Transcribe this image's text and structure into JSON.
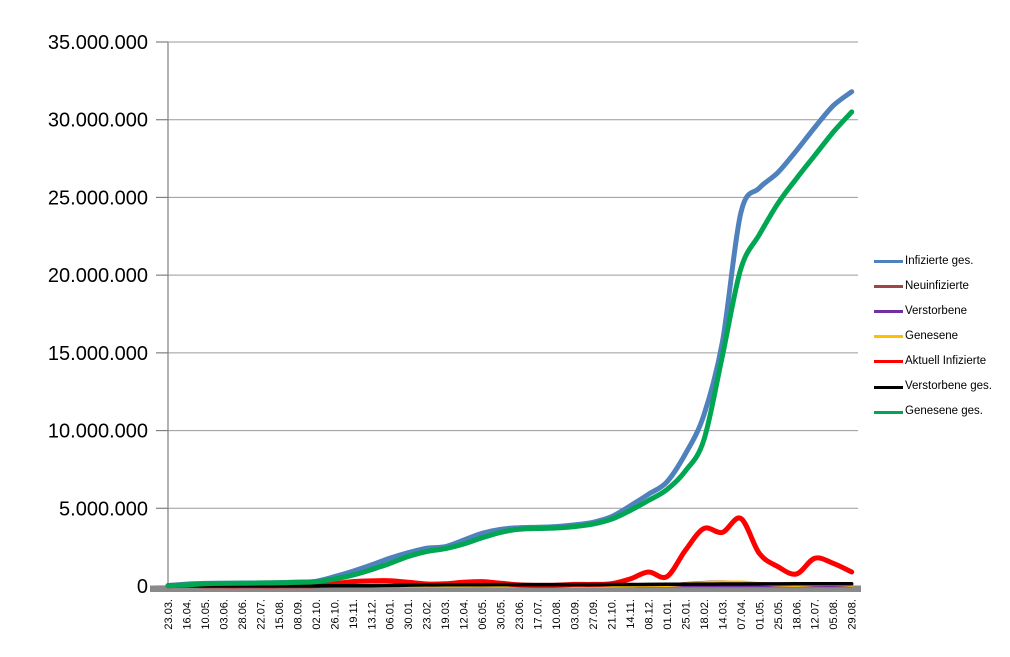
{
  "chart_data": {
    "type": "line",
    "title": "",
    "xlabel": "",
    "ylabel": "",
    "grid": true,
    "legend_position": "right",
    "background": "#ffffff",
    "gridline_color": "#9a9a9a",
    "axis_line_color": "#808080",
    "x_axis_bar_color": "#8a8a8a",
    "tick_label_color": "#000000",
    "y_axis": {
      "min": 0,
      "max": 35000000,
      "step": 5000000,
      "tick_labels": [
        "0",
        "5.000.000",
        "10.000.000",
        "15.000.000",
        "20.000.000",
        "25.000.000",
        "30.000.000",
        "35.000.000"
      ]
    },
    "categories": [
      "23.03.",
      "16.04.",
      "10.05.",
      "03.06.",
      "28.06.",
      "22.07.",
      "15.08.",
      "08.09.",
      "02.10.",
      "26.10.",
      "19.11.",
      "13.12.",
      "06.01.",
      "30.01.",
      "23.02.",
      "19.03.",
      "12.04.",
      "06.05.",
      "30.05.",
      "23.06.",
      "17.07.",
      "10.08.",
      "03.09.",
      "27.09.",
      "21.10.",
      "14.11.",
      "08.12.",
      "01.01.",
      "25.01.",
      "18.02.",
      "14.03.",
      "07.04.",
      "01.05.",
      "25.05.",
      "18.06.",
      "12.07.",
      "05.08.",
      "29.08."
    ],
    "series": [
      {
        "name": "Infizierte ges.",
        "color": "#4F81BD",
        "line_width": 5,
        "values": [
          30000,
          120000,
          170000,
          180000,
          190000,
          200000,
          220000,
          250000,
          300000,
          600000,
          950000,
          1350000,
          1780000,
          2140000,
          2430000,
          2530000,
          2950000,
          3390000,
          3650000,
          3750000,
          3780000,
          3820000,
          3930000,
          4100000,
          4460000,
          5150000,
          5900000,
          6700000,
          8500000,
          11000000,
          15700000,
          24000000,
          25600000,
          26600000,
          28000000,
          29500000,
          30900000,
          31800000
        ]
      },
      {
        "name": "Neuinfizierte",
        "color": "#9E4742",
        "line_width": 3.5,
        "values": [
          5000,
          5000,
          2000,
          1000,
          1000,
          1000,
          1000,
          2000,
          5000,
          15000,
          25000,
          30000,
          25000,
          15000,
          10000,
          15000,
          25000,
          25000,
          10000,
          5000,
          2000,
          5000,
          10000,
          10000,
          15000,
          50000,
          70000,
          40000,
          150000,
          220000,
          250000,
          200000,
          80000,
          60000,
          50000,
          120000,
          90000,
          50000
        ]
      },
      {
        "name": "Verstorbene",
        "color": "#7030A0",
        "line_width": 2.5,
        "values": [
          500,
          3000,
          2000,
          1000,
          500,
          500,
          500,
          500,
          500,
          1000,
          3000,
          5000,
          6000,
          5000,
          3000,
          2000,
          2000,
          2000,
          1000,
          500,
          500,
          500,
          1000,
          1000,
          1000,
          2000,
          3000,
          3000,
          2000,
          2000,
          2000,
          2000,
          1500,
          1000,
          1000,
          1000,
          1000,
          1000
        ]
      },
      {
        "name": "Genesene",
        "color": "#FFC000",
        "line_width": 3.5,
        "values": [
          2000,
          5000,
          3000,
          1000,
          1000,
          1000,
          1000,
          2000,
          4000,
          10000,
          20000,
          30000,
          30000,
          20000,
          12000,
          12000,
          20000,
          28000,
          15000,
          8000,
          3000,
          4000,
          8000,
          10000,
          12000,
          35000,
          60000,
          50000,
          120000,
          200000,
          230000,
          240000,
          150000,
          80000,
          55000,
          100000,
          110000,
          60000
        ]
      },
      {
        "name": "Aktuell Infizierte",
        "color": "#FF0000",
        "line_width": 5,
        "values": [
          20000,
          50000,
          20000,
          10000,
          10000,
          10000,
          10000,
          20000,
          30000,
          150000,
          280000,
          330000,
          340000,
          240000,
          130000,
          140000,
          240000,
          280000,
          180000,
          70000,
          40000,
          50000,
          100000,
          100000,
          150000,
          450000,
          900000,
          600000,
          2300000,
          3700000,
          3450000,
          4350000,
          2100000,
          1250000,
          770000,
          1780000,
          1460000,
          900000
        ]
      },
      {
        "name": "Verstorbene ges.",
        "color": "#000000",
        "line_width": 3.5,
        "values": [
          200,
          4000,
          7000,
          8500,
          9000,
          9100,
          9200,
          9300,
          9500,
          10000,
          14000,
          22000,
          36000,
          56000,
          69000,
          74000,
          78000,
          84000,
          88000,
          90000,
          91000,
          92000,
          92500,
          93000,
          95000,
          98000,
          104000,
          112000,
          117000,
          121000,
          126000,
          131000,
          135000,
          138000,
          140000,
          142000,
          144000,
          147000
        ]
      },
      {
        "name": "Genesene ges.",
        "color": "#00A651",
        "line_width": 5,
        "values": [
          10000,
          70000,
          150000,
          170000,
          180000,
          190000,
          200000,
          230000,
          270000,
          450000,
          700000,
          1050000,
          1450000,
          1900000,
          2220000,
          2400000,
          2700000,
          3100000,
          3450000,
          3650000,
          3700000,
          3730000,
          3820000,
          3980000,
          4300000,
          4850000,
          5500000,
          6200000,
          7400000,
          9400000,
          14800000,
          20400000,
          22600000,
          24600000,
          26200000,
          27700000,
          29200000,
          30500000
        ]
      }
    ]
  }
}
